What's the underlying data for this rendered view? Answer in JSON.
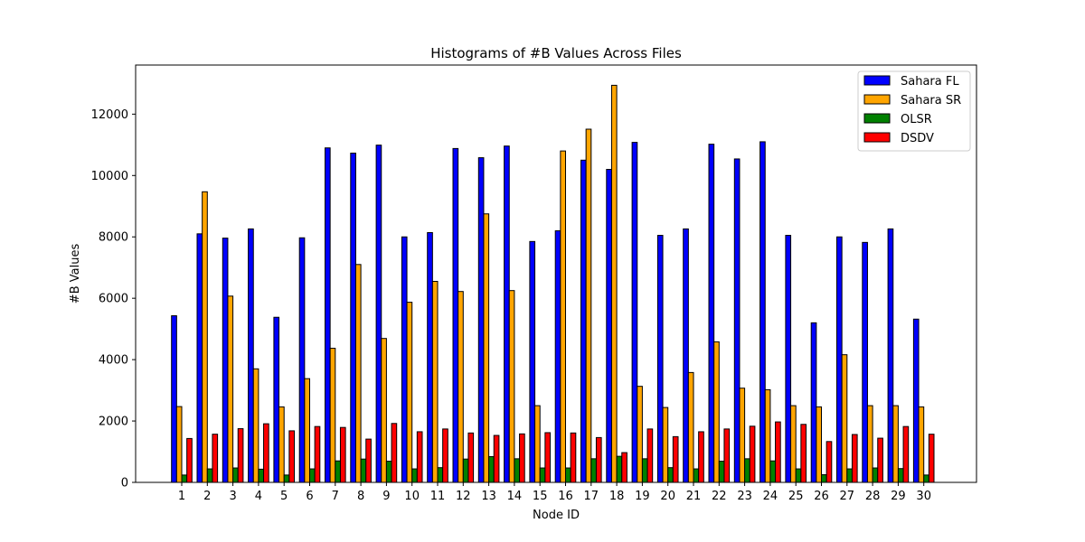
{
  "chart_data": {
    "type": "bar",
    "title": "Histograms of #B Values Across Files",
    "xlabel": "Node ID",
    "ylabel": "#B Values",
    "ylim": [
      0,
      13600
    ],
    "yticks": [
      0,
      2000,
      4000,
      6000,
      8000,
      10000,
      12000
    ],
    "legend_position": "top-right",
    "grid": false,
    "categories": [
      "1",
      "2",
      "3",
      "4",
      "5",
      "6",
      "7",
      "8",
      "9",
      "10",
      "11",
      "12",
      "13",
      "14",
      "15",
      "16",
      "17",
      "18",
      "19",
      "20",
      "21",
      "22",
      "23",
      "24",
      "25",
      "26",
      "27",
      "28",
      "29",
      "30"
    ],
    "series": [
      {
        "name": "Sahara FL",
        "color": "#0000ff",
        "values": [
          5430,
          8100,
          7960,
          8260,
          5380,
          7970,
          10900,
          10730,
          10990,
          8000,
          8140,
          10880,
          10580,
          10960,
          7850,
          8200,
          10500,
          10200,
          11080,
          8050,
          8260,
          11020,
          10540,
          11100,
          8050,
          5200,
          8000,
          7820,
          8260,
          5320
        ]
      },
      {
        "name": "Sahara SR",
        "color": "#ffa500",
        "values": [
          2470,
          9470,
          6070,
          3700,
          2460,
          3380,
          4370,
          7100,
          4690,
          5870,
          6550,
          6220,
          8750,
          6250,
          2500,
          10800,
          11510,
          12940,
          3130,
          2440,
          3580,
          4580,
          3070,
          3020,
          2500,
          2460,
          4160,
          2500,
          2500,
          2460
        ]
      },
      {
        "name": "OLSR",
        "color": "#008000",
        "values": [
          240,
          440,
          470,
          430,
          240,
          440,
          700,
          760,
          690,
          440,
          480,
          760,
          840,
          770,
          470,
          470,
          770,
          850,
          770,
          480,
          440,
          690,
          770,
          700,
          440,
          250,
          440,
          470,
          450,
          240
        ]
      },
      {
        "name": "DSDV",
        "color": "#ff0000",
        "values": [
          1430,
          1570,
          1750,
          1910,
          1680,
          1820,
          1790,
          1410,
          1920,
          1650,
          1740,
          1610,
          1530,
          1580,
          1620,
          1610,
          1460,
          970,
          1740,
          1490,
          1650,
          1740,
          1830,
          1970,
          1890,
          1330,
          1560,
          1440,
          1820,
          1570
        ]
      }
    ]
  }
}
